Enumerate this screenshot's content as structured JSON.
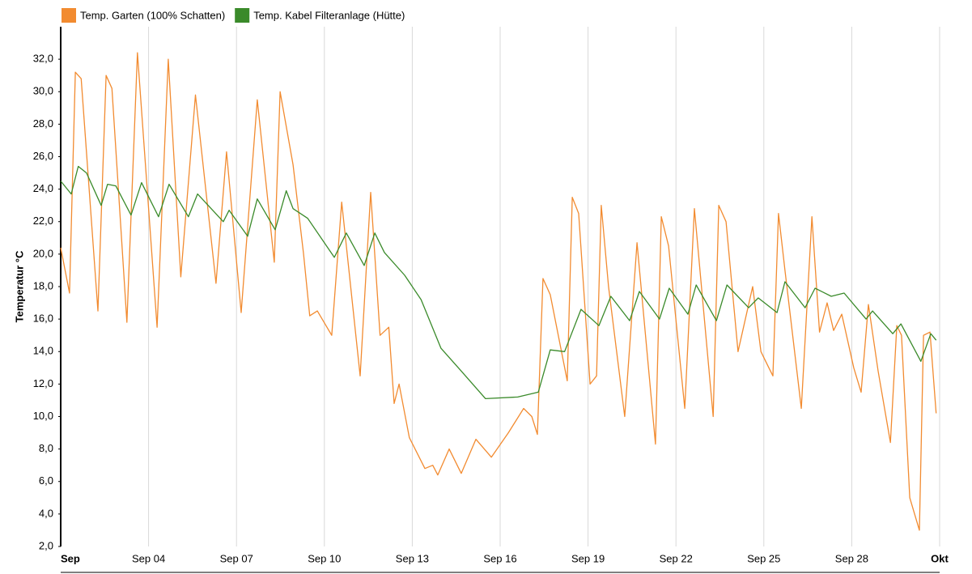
{
  "chart_data": {
    "type": "line",
    "y_label": "Temperatur °C",
    "xlim": [
      1,
      31
    ],
    "ylim": [
      2,
      34
    ],
    "xticks": [
      {
        "value": 1,
        "label": "Sep"
      },
      {
        "value": 4,
        "label": "Sep 04"
      },
      {
        "value": 7,
        "label": "Sep 07"
      },
      {
        "value": 10,
        "label": "Sep 10"
      },
      {
        "value": 13,
        "label": "Sep 13"
      },
      {
        "value": 16,
        "label": "Sep 16"
      },
      {
        "value": 19,
        "label": "Sep 19"
      },
      {
        "value": 22,
        "label": "Sep 22"
      },
      {
        "value": 25,
        "label": "Sep 25"
      },
      {
        "value": 28,
        "label": "Sep 28"
      },
      {
        "value": 31,
        "label": "Okt"
      }
    ],
    "yticks": [
      {
        "value": 2,
        "label": "2,0"
      },
      {
        "value": 4,
        "label": "4,0"
      },
      {
        "value": 6,
        "label": "6,0"
      },
      {
        "value": 8,
        "label": "8,0"
      },
      {
        "value": 10,
        "label": "10,0"
      },
      {
        "value": 12,
        "label": "12,0"
      },
      {
        "value": 14,
        "label": "14,0"
      },
      {
        "value": 16,
        "label": "16,0"
      },
      {
        "value": 18,
        "label": "18,0"
      },
      {
        "value": 20,
        "label": "20,0"
      },
      {
        "value": 22,
        "label": "22,0"
      },
      {
        "value": 24,
        "label": "24,0"
      },
      {
        "value": 26,
        "label": "26,0"
      },
      {
        "value": 28,
        "label": "28,0"
      },
      {
        "value": 30,
        "label": "30,0"
      },
      {
        "value": 32,
        "label": "32,0"
      }
    ],
    "grid": "x",
    "series": [
      {
        "name": "Temp. Garten (100% Schatten)",
        "color": "#f28b30",
        "x": [
          1.0,
          1.3,
          1.5,
          1.7,
          2.27,
          2.55,
          2.75,
          3.26,
          3.62,
          4.29,
          4.67,
          5.1,
          5.6,
          6.3,
          6.66,
          7.16,
          7.71,
          8.29,
          8.49,
          8.93,
          9.29,
          9.5,
          9.76,
          10.25,
          10.59,
          11.22,
          11.58,
          11.9,
          12.2,
          12.38,
          12.55,
          12.9,
          13.43,
          13.7,
          13.87,
          14.26,
          14.67,
          15.17,
          15.7,
          16.28,
          16.8,
          17.08,
          17.27,
          17.46,
          17.71,
          18.29,
          18.46,
          18.68,
          19.07,
          19.29,
          19.45,
          19.7,
          20.25,
          20.67,
          21.3,
          21.5,
          21.75,
          22.3,
          22.63,
          23.27,
          23.46,
          23.71,
          24.12,
          24.62,
          24.9,
          25.17,
          25.31,
          25.5,
          25.72,
          26.28,
          26.64,
          26.9,
          27.16,
          27.38,
          27.66,
          28.07,
          28.32,
          28.57,
          28.9,
          29.32,
          29.54,
          29.7,
          29.98,
          30.31,
          30.45,
          30.67,
          30.88
        ],
        "values": [
          20.4,
          17.6,
          31.2,
          30.8,
          16.5,
          31.0,
          30.2,
          15.8,
          32.4,
          15.5,
          32.0,
          18.6,
          29.8,
          18.2,
          26.3,
          16.4,
          29.5,
          19.5,
          30.0,
          25.5,
          20.0,
          16.2,
          16.5,
          15.0,
          23.2,
          12.5,
          23.8,
          15.0,
          15.5,
          10.8,
          12.0,
          8.7,
          6.8,
          7.0,
          6.4,
          8.0,
          6.5,
          8.6,
          7.5,
          9.0,
          10.5,
          10.0,
          8.9,
          18.5,
          17.5,
          12.2,
          23.5,
          22.5,
          12.0,
          12.5,
          23.0,
          18.0,
          10.0,
          20.7,
          8.3,
          22.3,
          20.5,
          10.5,
          22.8,
          10.0,
          23.0,
          22.0,
          14.0,
          18.0,
          14.0,
          13.0,
          12.5,
          22.5,
          19.0,
          10.5,
          22.3,
          15.2,
          17.0,
          15.3,
          16.3,
          13.0,
          11.5,
          16.9,
          12.8,
          8.4,
          15.6,
          15.0,
          5.0,
          3.0,
          15.0,
          15.2,
          10.2
        ]
      },
      {
        "name": "Temp. Kabel Filteranlage (Hütte)",
        "color": "#3a8a2a",
        "x": [
          1.0,
          1.36,
          1.6,
          1.88,
          2.38,
          2.6,
          2.88,
          3.4,
          3.76,
          4.34,
          4.7,
          5.36,
          5.67,
          6.55,
          6.75,
          7.38,
          7.71,
          8.32,
          8.7,
          8.93,
          9.43,
          10.34,
          10.75,
          11.36,
          11.72,
          12.05,
          12.74,
          13.3,
          13.98,
          14.67,
          15.5,
          16.6,
          17.3,
          17.71,
          18.2,
          18.76,
          19.37,
          19.78,
          20.42,
          20.75,
          21.44,
          21.77,
          22.41,
          22.69,
          23.38,
          23.74,
          24.48,
          24.81,
          25.45,
          25.72,
          26.41,
          26.75,
          27.3,
          27.74,
          28.49,
          28.71,
          29.4,
          29.68,
          30.36,
          30.7,
          30.88
        ],
        "values": [
          24.5,
          23.7,
          25.4,
          25.0,
          23.0,
          24.3,
          24.2,
          22.4,
          24.4,
          22.3,
          24.3,
          22.3,
          23.7,
          22.0,
          22.7,
          21.1,
          23.4,
          21.5,
          23.9,
          22.8,
          22.2,
          19.8,
          21.3,
          19.3,
          21.3,
          20.1,
          18.7,
          17.2,
          14.2,
          12.8,
          11.1,
          11.2,
          11.5,
          14.1,
          14.0,
          16.6,
          15.6,
          17.4,
          15.9,
          17.7,
          16.0,
          17.9,
          16.3,
          18.1,
          15.9,
          18.1,
          16.7,
          17.3,
          16.4,
          18.3,
          16.7,
          17.9,
          17.4,
          17.6,
          16.0,
          16.5,
          15.1,
          15.7,
          13.4,
          15.1,
          14.7
        ]
      }
    ]
  }
}
